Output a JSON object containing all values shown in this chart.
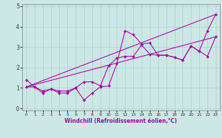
{
  "xlabel": "Windchill (Refroidissement éolien,°C)",
  "background_color": "#cce8e4",
  "grid_color": "#aacccc",
  "line_color": "#aa00aa",
  "xlim": [
    -0.5,
    23.5
  ],
  "ylim": [
    -0.1,
    5.1
  ],
  "xticks": [
    0,
    1,
    2,
    3,
    4,
    5,
    6,
    7,
    8,
    9,
    10,
    11,
    12,
    13,
    14,
    15,
    16,
    17,
    18,
    19,
    20,
    21,
    22,
    23
  ],
  "yticks": [
    0,
    1,
    2,
    3,
    4,
    5
  ],
  "line1_x": [
    0,
    1,
    2,
    3,
    4,
    5,
    6,
    7,
    8,
    9,
    10,
    11,
    12,
    13,
    14,
    15,
    16,
    17,
    18,
    19,
    20,
    21,
    22,
    23
  ],
  "line1_y": [
    1.4,
    1.05,
    0.75,
    0.95,
    0.75,
    0.75,
    1.0,
    0.4,
    0.75,
    1.05,
    1.1,
    2.2,
    3.8,
    3.6,
    3.15,
    3.2,
    2.6,
    2.6,
    2.5,
    2.35,
    3.05,
    2.8,
    3.8,
    4.6
  ],
  "line2_x": [
    0,
    1,
    2,
    3,
    4,
    5,
    6,
    7,
    8,
    9,
    10,
    11,
    12,
    13,
    14,
    15,
    16,
    17,
    18,
    19,
    20,
    21,
    22,
    23
  ],
  "line2_y": [
    1.05,
    1.05,
    0.85,
    0.95,
    0.85,
    0.85,
    1.0,
    1.3,
    1.3,
    1.1,
    2.1,
    2.45,
    2.55,
    2.55,
    3.1,
    2.65,
    2.6,
    2.6,
    2.5,
    2.35,
    3.05,
    2.8,
    2.55,
    3.5
  ],
  "line3_x": [
    0,
    23
  ],
  "line3_y": [
    1.05,
    4.6
  ],
  "line4_x": [
    0,
    23
  ],
  "line4_y": [
    1.05,
    3.5
  ]
}
